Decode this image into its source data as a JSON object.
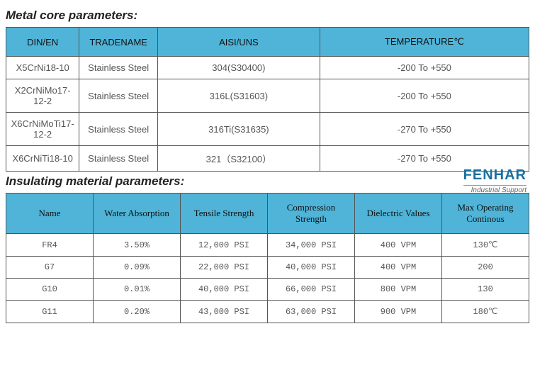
{
  "section1": {
    "title": "Metal core parameters:",
    "columns": [
      "DIN/EN",
      "TRADENAME",
      "AISI/UNS",
      "TEMPERATURE℃"
    ],
    "rows": [
      [
        "X5CrNi18-10",
        "Stainless Steel",
        "304(S30400)",
        "-200 To +550"
      ],
      [
        "X2CrNiMo17-12-2",
        "Stainless Steel",
        "316L(S31603)",
        "-200 To +550"
      ],
      [
        "X6CrNiMoTi17-12-2",
        "Stainless Steel",
        "316Ti(S31635)",
        "-270 To +550"
      ],
      [
        "X6CrNiTi18-10",
        "Stainless Steel",
        "321（S32100）",
        "-270 To +550"
      ]
    ]
  },
  "section2": {
    "title": "Insulating material parameters:",
    "columns": [
      "Name",
      "Water Absorption",
      "Tensile Strength",
      "Compression Strength",
      "Dielectric Values",
      "Max Operating Continous"
    ],
    "rows": [
      [
        "FR4",
        "3.50%",
        "12,000 PSI",
        "34,000 PSI",
        "400 VPM",
        "130℃"
      ],
      [
        "G7",
        "0.09%",
        "22,000 PSI",
        "40,000 PSI",
        "400 VPM",
        "200"
      ],
      [
        "G10",
        "0.01%",
        "40,000 PSI",
        "66,000 PSI",
        "800 VPM",
        "130"
      ],
      [
        "G11",
        "0.20%",
        "43,000 PSI",
        "63,000 PSI",
        "900 VPM",
        "180℃"
      ]
    ]
  },
  "logo": {
    "main": "FENHAR",
    "sub": "Industrial Support"
  },
  "style": {
    "header_bg": "#4fb4d8",
    "border_color": "#555555",
    "title_fontsize": 17,
    "cell_fontsize": 13,
    "logo_color": "#1a6fa0"
  }
}
